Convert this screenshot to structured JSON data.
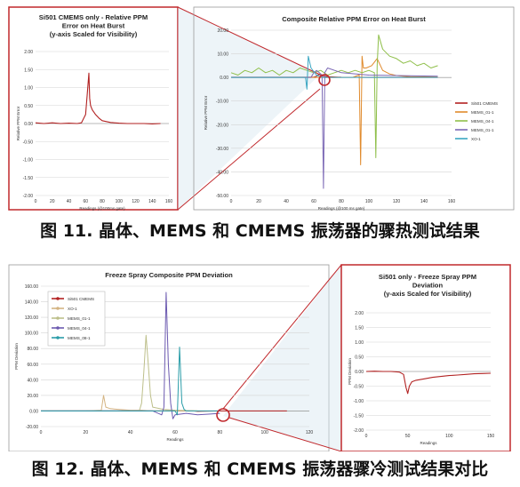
{
  "figure11": {
    "caption": "图 11. 晶体、MEMS 和 CMEMS 振荡器的骤热测试结果",
    "chart_data": [
      {
        "type": "line",
        "title": "Si501 CMEMS only - Relative PPM Error on Heat Burst (y-axis Scaled for Visibility)",
        "title_lines": [
          "Si501 CMEMS only - Relative PPM",
          "Error on Heat Burst",
          "(y-axis Scaled for Visibility)"
        ],
        "xlabel": "Readings (@100ms gate)",
        "ylabel": "Relative PPM Error",
        "xlim": [
          0,
          160
        ],
        "ylim": [
          -2.0,
          2.0
        ],
        "x_ticks": [
          "0",
          "20",
          "40",
          "60",
          "80",
          "100",
          "120",
          "140",
          "160"
        ],
        "y_ticks": [
          "2.00",
          "1.50",
          "1.00",
          "0.50",
          "0.00",
          "-0.50",
          "-1.00",
          "-1.50",
          "-2.00"
        ],
        "grid": true,
        "series": [
          {
            "name": "",
            "color": "#b22222",
            "x": [
              0,
              10,
              20,
              30,
              40,
              50,
              55,
              60,
              62,
              64,
              65,
              66,
              68,
              72,
              76,
              80,
              90,
              100,
              110,
              120,
              130,
              140,
              150
            ],
            "y": [
              0.02,
              0.0,
              0.02,
              0.0,
              0.01,
              0.0,
              0.02,
              0.25,
              0.8,
              1.4,
              0.7,
              0.5,
              0.38,
              0.25,
              0.15,
              0.08,
              0.03,
              0.01,
              0.0,
              0.0,
              0.0,
              -0.01,
              0.0
            ]
          }
        ]
      },
      {
        "type": "line",
        "title": "Composite Relative PPM Error on Heat Burst",
        "xlabel": "Readings (@100 ms gate)",
        "ylabel": "Relative PPM Error",
        "xlim": [
          0,
          160
        ],
        "ylim": [
          -50,
          20
        ],
        "x_ticks": [
          "0",
          "20",
          "40",
          "60",
          "80",
          "100",
          "120",
          "140",
          "160"
        ],
        "y_ticks": [
          "20.00",
          "10.00",
          "0.00",
          "-10.00",
          "-20.00",
          "-30.00",
          "-40.00",
          "-50.00"
        ],
        "grid": true,
        "legend_position": "right",
        "series": [
          {
            "name": "Si501 CMEMS",
            "color": "#b22222",
            "x": [
              0,
              40,
              60,
              62,
              64,
              66,
              70,
              80,
              100,
              120,
              150
            ],
            "y": [
              0.1,
              0.1,
              0.1,
              0.5,
              1.4,
              0.6,
              0.3,
              0.1,
              0.0,
              0.0,
              0.0
            ]
          },
          {
            "name": "MEMS_01-1",
            "color": "#e08a2c",
            "x": [
              0,
              50,
              60,
              80,
              88,
              93,
              94,
              95,
              96,
              98,
              102,
              106,
              110,
              115,
              120,
              125,
              130,
              150
            ],
            "y": [
              0,
              0,
              0,
              0,
              0,
              1,
              -37,
              9,
              4,
              4,
              5,
              8,
              3,
              1.5,
              0.8,
              0.5,
              0.3,
              0.2
            ]
          },
          {
            "name": "MEMS_04-1",
            "color": "#8fbf4a",
            "x": [
              0,
              5,
              10,
              15,
              20,
              25,
              30,
              35,
              40,
              45,
              50,
              55,
              60,
              65,
              70,
              75,
              80,
              85,
              90,
              95,
              100,
              104,
              105,
              106,
              107,
              110,
              115,
              120,
              125,
              130,
              135,
              140,
              145,
              150
            ],
            "y": [
              2,
              1,
              3,
              2,
              4,
              2,
              3,
              1,
              3,
              2,
              4,
              3,
              2,
              3,
              1,
              2,
              3,
              2,
              3,
              2,
              3,
              2,
              -34,
              5,
              18,
              12,
              9,
              8,
              6,
              7,
              5,
              6,
              4,
              5
            ]
          },
          {
            "name": "MEMS_01-1",
            "color": "#7b68b5",
            "x": [
              0,
              30,
              50,
              58,
              60,
              62,
              64,
              66,
              67,
              68,
              70,
              80,
              100,
              150
            ],
            "y": [
              0,
              0,
              0,
              0,
              2,
              3,
              2,
              1,
              -47,
              2,
              4,
              2,
              1,
              0.5
            ]
          },
          {
            "name": "XO-1",
            "color": "#3aa6c2",
            "x": [
              0,
              40,
              50,
              54,
              55,
              56,
              58,
              62,
              66,
              80,
              100,
              150
            ],
            "y": [
              0,
              0,
              0,
              0,
              -5,
              9,
              4,
              1,
              0,
              0,
              0,
              0
            ]
          }
        ]
      }
    ]
  },
  "figure12": {
    "caption": "图 12. 晶体、MEMS 和 CMEMS 振荡器骤冷测试结果对比",
    "chart_data": [
      {
        "type": "line",
        "title": "Freeze Spray Composite PPM Deviation",
        "xlabel": "Readings",
        "ylabel": "PPM Deviation",
        "xlim": [
          0,
          120
        ],
        "ylim": [
          -20,
          160
        ],
        "x_ticks": [
          "0",
          "20",
          "40",
          "60",
          "80",
          "100",
          "120"
        ],
        "y_ticks": [
          "160.00",
          "140.00",
          "120.00",
          "100.00",
          "80.00",
          "60.00",
          "40.00",
          "20.00",
          "0.00",
          "-20.00"
        ],
        "grid": true,
        "legend_position": "top-left",
        "series": [
          {
            "name": "Si501 CMEMS",
            "color": "#b22222",
            "x": [
              0,
              20,
              40,
              60,
              68,
              70,
              72,
              80,
              90,
              100,
              110
            ],
            "y": [
              0,
              0,
              0,
              0,
              0,
              -0.5,
              -0.3,
              0,
              0,
              0,
              0
            ]
          },
          {
            "name": "XO-1",
            "color": "#d4b483",
            "x": [
              0,
              20,
              27,
              28,
              29,
              31,
              35,
              40,
              45,
              50,
              55,
              60,
              70
            ],
            "y": [
              0,
              0,
              1,
              20,
              5,
              3,
              2,
              1,
              1,
              0,
              0,
              0,
              0
            ]
          },
          {
            "name": "MEMS_01-1",
            "color": "#bdbf8a",
            "x": [
              0,
              30,
              40,
              44,
              45,
              46,
              47,
              48,
              49,
              50,
              55,
              60,
              70
            ],
            "y": [
              0,
              0,
              0,
              0,
              10,
              50,
              97,
              60,
              20,
              5,
              2,
              1,
              0
            ]
          },
          {
            "name": "MEMS_04-1",
            "color": "#6c5ab0",
            "x": [
              0,
              40,
              50,
              54,
              55,
              56,
              57,
              58,
              59,
              60,
              65,
              70,
              75,
              80
            ],
            "y": [
              0,
              0,
              0,
              -5,
              5,
              152,
              60,
              10,
              -10,
              -5,
              -3,
              -5,
              -4,
              -3
            ]
          },
          {
            "name": "MEMS_08-1",
            "color": "#2a9da8",
            "x": [
              0,
              40,
              55,
              60,
              61,
              62,
              63,
              64,
              65,
              70,
              80
            ],
            "y": [
              0,
              0,
              0,
              0,
              -5,
              82,
              10,
              2,
              0,
              0,
              0
            ]
          }
        ]
      },
      {
        "type": "line",
        "title": "Si501 only - Freeze Spray PPM Deviation (y-axis Scaled for Visibility)",
        "title_lines": [
          "Si501 only - Freeze Spray PPM",
          "Deviation",
          "(y-axis Scaled for Visibility)"
        ],
        "xlabel": "Readings",
        "ylabel": "PPM Deviation",
        "xlim": [
          0,
          150
        ],
        "ylim": [
          -2.0,
          2.0
        ],
        "x_ticks": [
          "0",
          "50",
          "100",
          "150"
        ],
        "y_ticks": [
          "2.00",
          "1.50",
          "1.00",
          "0.50",
          "0.00",
          "-0.50",
          "-1.00",
          "-1.50",
          "-2.00"
        ],
        "grid": true,
        "series": [
          {
            "name": "",
            "color": "#b22222",
            "x": [
              0,
              10,
              20,
              30,
              40,
              45,
              48,
              50,
              52,
              55,
              60,
              70,
              80,
              90,
              100,
              110,
              120,
              130,
              140,
              150
            ],
            "y": [
              0.0,
              0.01,
              0.0,
              0.0,
              -0.02,
              -0.1,
              -0.55,
              -0.75,
              -0.5,
              -0.35,
              -0.3,
              -0.25,
              -0.2,
              -0.17,
              -0.14,
              -0.12,
              -0.1,
              -0.08,
              -0.07,
              -0.06
            ]
          }
        ]
      }
    ]
  }
}
